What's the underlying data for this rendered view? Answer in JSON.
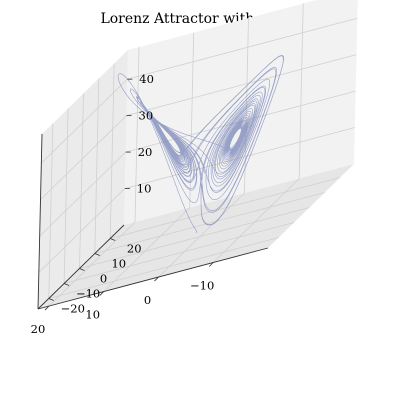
{
  "chart_data": {
    "type": "line",
    "projection": "3d",
    "title": "Lorenz Attractor with odeint",
    "xlabel": "",
    "ylabel": "",
    "zlabel": "",
    "grid": true,
    "xlim": [
      -20,
      22
    ],
    "ylim": [
      -27,
      29
    ],
    "zlim": [
      0,
      48
    ],
    "xticks": [
      -10,
      0,
      10,
      20
    ],
    "yticks": [
      -20,
      -10,
      0,
      10,
      20
    ],
    "zticks": [
      10,
      20,
      30,
      40
    ],
    "series": [
      {
        "system": "lorenz",
        "sigma": 10,
        "rho": 28,
        "beta": 2.6667,
        "initial_state": [
          1.0,
          1.0,
          1.0
        ],
        "t_span": [
          0,
          40
        ],
        "line_color": "#7a86b8",
        "line_alpha": 0.75
      }
    ]
  }
}
